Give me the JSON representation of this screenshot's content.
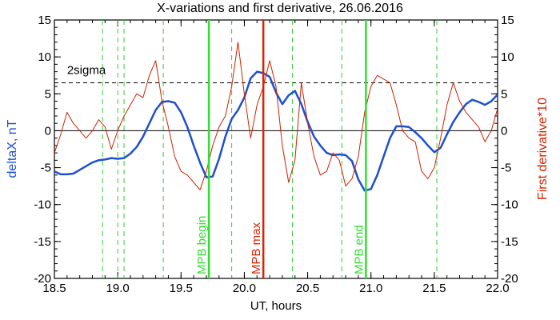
{
  "chart_data": {
    "type": "line",
    "title": "X-variations and first derivative, 26.06.2016",
    "xlabel": "UT, hours",
    "ylabel_left": "deltaX, nT",
    "ylabel_right": "First derivative*10",
    "xlim": [
      18.5,
      22.0
    ],
    "ylim": [
      -20,
      15
    ],
    "x_ticks": [
      "18.5",
      "19.0",
      "19.5",
      "20.0",
      "20.5",
      "21.0",
      "21.5",
      "22.0"
    ],
    "y_ticks_left": [
      "-20",
      "-15",
      "-10",
      "-5",
      "0",
      "5",
      "10",
      "15"
    ],
    "y_ticks_right": [
      "-20",
      "-15",
      "-10",
      "-5",
      "0",
      "5",
      "10",
      "15"
    ],
    "colors": {
      "deltaX": "#1f4fcf",
      "derivative": "#cc2200",
      "dashed_marker": "#33cc33",
      "mpb_boundary": "#33dd33",
      "mpb_max": "#dd2200",
      "zero_line": "#000000",
      "sigma_line": "#000000"
    },
    "sigma": {
      "label": "2sigma",
      "value": 6.5
    },
    "zero_line": 0,
    "dashed_markers_x": [
      18.88,
      19.0,
      19.05,
      19.36,
      19.9,
      20.38,
      20.77,
      21.52
    ],
    "mpb_lines": [
      {
        "x": 19.72,
        "label": "MPB begin",
        "role": "mpb_boundary"
      },
      {
        "x": 20.15,
        "label": "MPB max",
        "role": "mpb_max"
      },
      {
        "x": 20.96,
        "label": "MPB end",
        "role": "mpb_boundary"
      }
    ],
    "series": [
      {
        "key": "deltaX",
        "axis": "left",
        "x": [
          18.5,
          18.55,
          18.6,
          18.65,
          18.7,
          18.75,
          18.8,
          18.85,
          18.9,
          18.95,
          19.0,
          19.05,
          19.1,
          19.15,
          19.2,
          19.25,
          19.3,
          19.35,
          19.4,
          19.45,
          19.5,
          19.55,
          19.6,
          19.65,
          19.7,
          19.75,
          19.8,
          19.85,
          19.9,
          19.95,
          20.0,
          20.05,
          20.1,
          20.15,
          20.2,
          20.25,
          20.3,
          20.35,
          20.4,
          20.45,
          20.5,
          20.55,
          20.6,
          20.65,
          20.7,
          20.75,
          20.8,
          20.85,
          20.9,
          20.95,
          21.0,
          21.05,
          21.1,
          21.15,
          21.2,
          21.25,
          21.3,
          21.35,
          21.4,
          21.45,
          21.5,
          21.55,
          21.6,
          21.65,
          21.7,
          21.75,
          21.8,
          21.85,
          21.9,
          21.95,
          22.0
        ],
        "values": [
          -5.5,
          -5.9,
          -5.9,
          -5.8,
          -5.3,
          -4.8,
          -4.3,
          -4.0,
          -3.9,
          -3.7,
          -3.8,
          -3.7,
          -3.1,
          -2.2,
          -0.8,
          1.0,
          2.8,
          3.9,
          4.0,
          3.8,
          2.5,
          0.5,
          -2.0,
          -4.3,
          -6.3,
          -6.2,
          -3.8,
          -0.8,
          1.6,
          2.8,
          4.5,
          7.1,
          8.0,
          7.8,
          7.3,
          5.2,
          3.6,
          4.8,
          5.4,
          3.6,
          1.2,
          -0.8,
          -2.0,
          -3.0,
          -3.3,
          -3.2,
          -3.3,
          -4.1,
          -6.6,
          -8.1,
          -7.9,
          -6.0,
          -3.5,
          -1.0,
          0.6,
          0.6,
          0.5,
          -0.2,
          -1.0,
          -2.0,
          -2.9,
          -2.3,
          -0.5,
          1.2,
          2.5,
          3.6,
          4.2,
          3.9,
          3.5,
          4.0,
          4.9
        ]
      },
      {
        "key": "derivative",
        "axis": "right",
        "x": [
          18.5,
          18.55,
          18.6,
          18.65,
          18.7,
          18.75,
          18.8,
          18.85,
          18.9,
          18.95,
          19.0,
          19.05,
          19.1,
          19.15,
          19.2,
          19.25,
          19.3,
          19.35,
          19.4,
          19.45,
          19.5,
          19.55,
          19.6,
          19.65,
          19.7,
          19.75,
          19.8,
          19.85,
          19.9,
          19.95,
          20.0,
          20.05,
          20.1,
          20.15,
          20.2,
          20.25,
          20.3,
          20.35,
          20.4,
          20.45,
          20.5,
          20.55,
          20.6,
          20.65,
          20.7,
          20.75,
          20.8,
          20.85,
          20.9,
          20.95,
          21.0,
          21.05,
          21.1,
          21.15,
          21.2,
          21.25,
          21.3,
          21.35,
          21.4,
          21.45,
          21.5,
          21.55,
          21.6,
          21.65,
          21.7,
          21.75,
          21.8,
          21.85,
          21.9,
          21.95,
          22.0
        ],
        "values": [
          -3.0,
          -0.5,
          2.5,
          1.0,
          0.0,
          -1.0,
          0.0,
          1.5,
          0.5,
          -2.5,
          0.0,
          2.0,
          3.5,
          5.0,
          4.5,
          7.5,
          9.5,
          4.0,
          0.5,
          -3.5,
          -5.5,
          -6.0,
          -7.0,
          -8.0,
          -5.5,
          -2.0,
          0.5,
          2.0,
          6.0,
          12.0,
          5.0,
          -1.0,
          3.5,
          6.0,
          9.5,
          6.0,
          -2.0,
          -7.0,
          -4.0,
          6.5,
          1.0,
          -3.5,
          -6.0,
          -5.5,
          -3.0,
          -4.0,
          -7.5,
          -6.5,
          -3.5,
          2.5,
          6.0,
          7.5,
          7.0,
          6.5,
          3.5,
          0.0,
          -1.0,
          -1.5,
          -5.5,
          -6.5,
          -5.0,
          -1.0,
          3.5,
          6.5,
          4.0,
          2.5,
          1.5,
          0.5,
          -1.5,
          0.0,
          3.0
        ]
      }
    ]
  }
}
